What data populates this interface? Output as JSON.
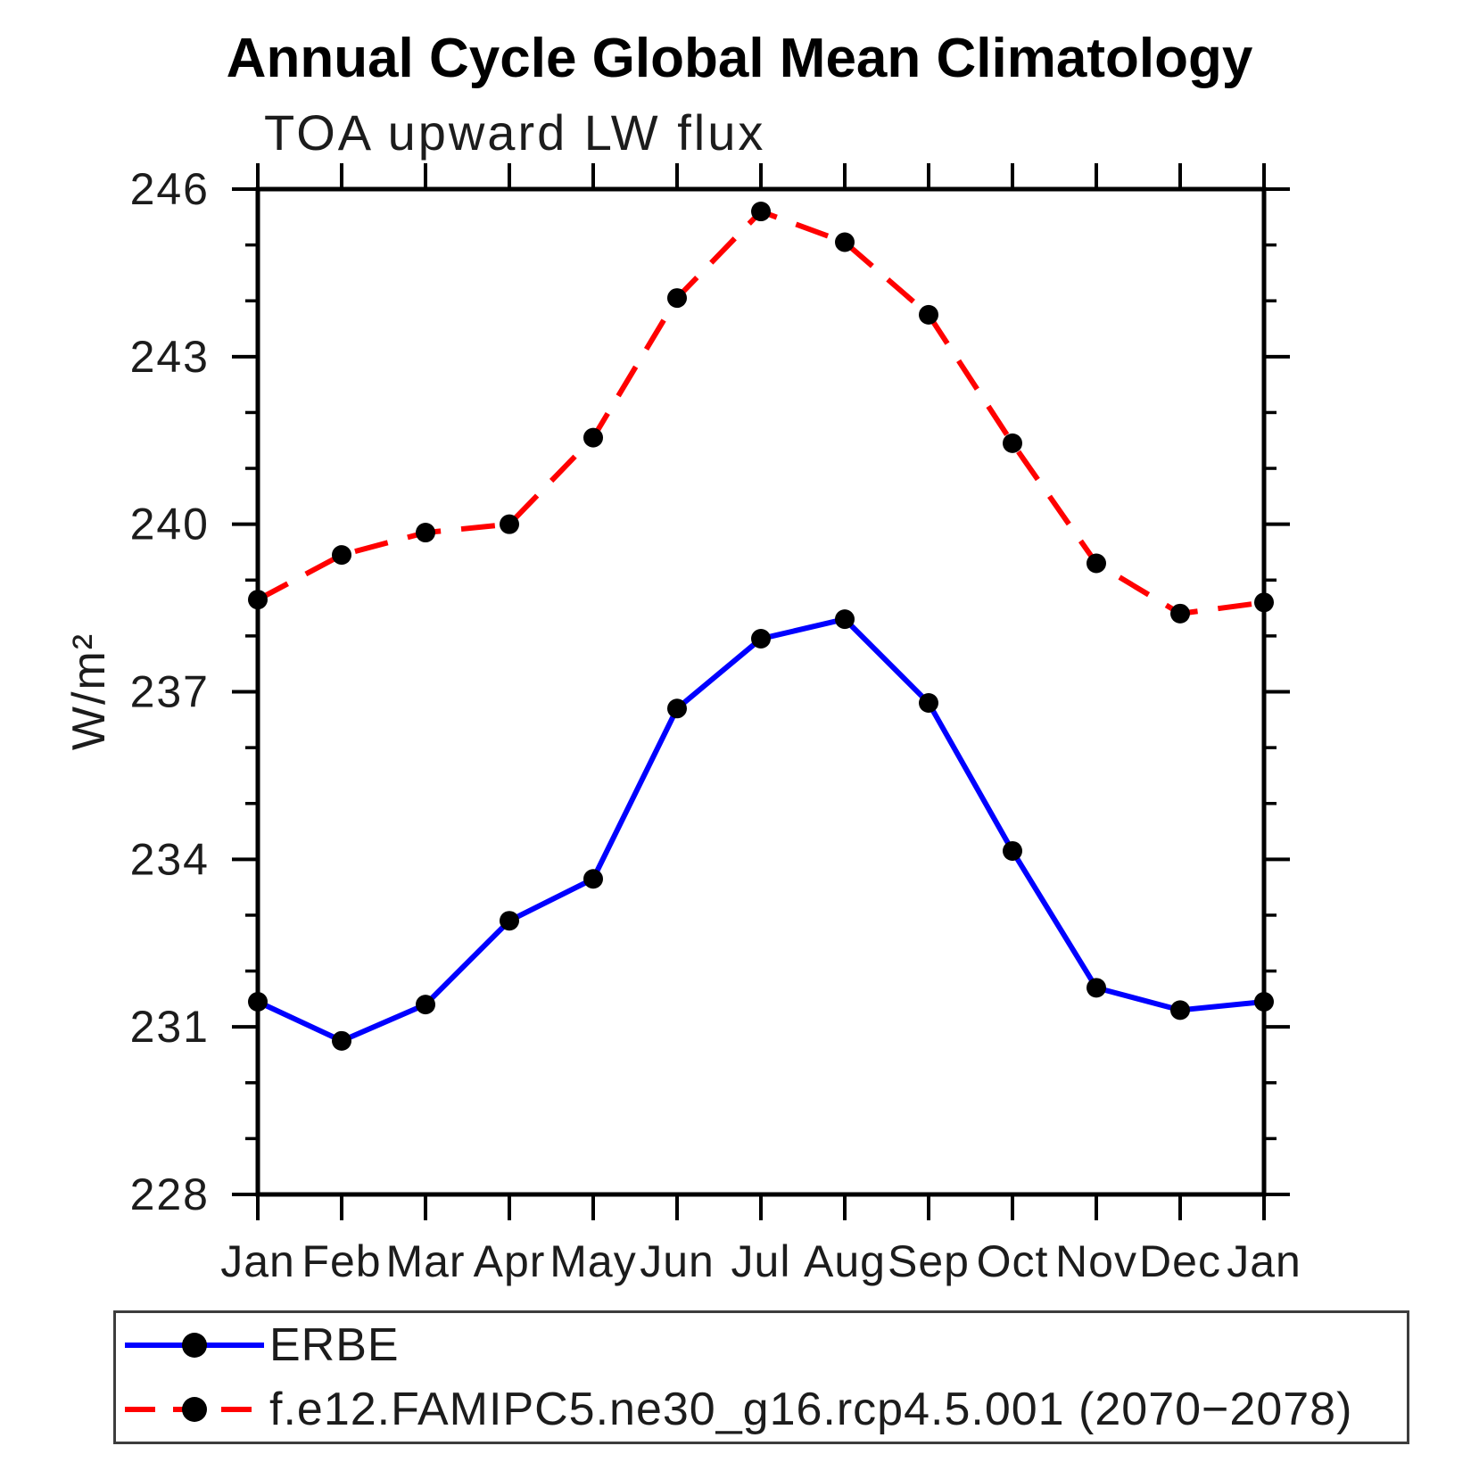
{
  "chart": {
    "title": "Annual Cycle Global Mean Climatology",
    "subtitle": "TOA upward LW flux",
    "ylabel": "W/m²"
  },
  "chart_data": {
    "type": "line",
    "categories": [
      "Jan",
      "Feb",
      "Mar",
      "Apr",
      "May",
      "Jun",
      "Jul",
      "Aug",
      "Sep",
      "Oct",
      "Nov",
      "Dec",
      "Jan"
    ],
    "xlabel": "",
    "ylabel": "W/m²",
    "ylim": [
      228,
      246
    ],
    "yticks": [
      228,
      231,
      234,
      237,
      240,
      243,
      246
    ],
    "y_minor_step": 1,
    "grid": false,
    "legend_position": "bottom-left-box",
    "axis_color": "#000000",
    "marker_color": "#000000",
    "series": [
      {
        "name": "ERBE",
        "color": "#0000ff",
        "style": "solid",
        "marker": "circle",
        "values": [
          231.45,
          230.75,
          231.4,
          232.9,
          233.65,
          236.7,
          237.95,
          238.3,
          236.8,
          234.15,
          231.7,
          231.3,
          231.45
        ]
      },
      {
        "name": "f.e12.FAMIPC5.ne30_g16.rcp4.5.001 (2070−2078)",
        "color": "#ff0000",
        "style": "dashed",
        "marker": "circle",
        "values": [
          238.65,
          239.45,
          239.85,
          240.0,
          241.55,
          244.05,
          245.6,
          245.05,
          243.75,
          241.45,
          239.3,
          238.4,
          238.6
        ]
      }
    ]
  }
}
